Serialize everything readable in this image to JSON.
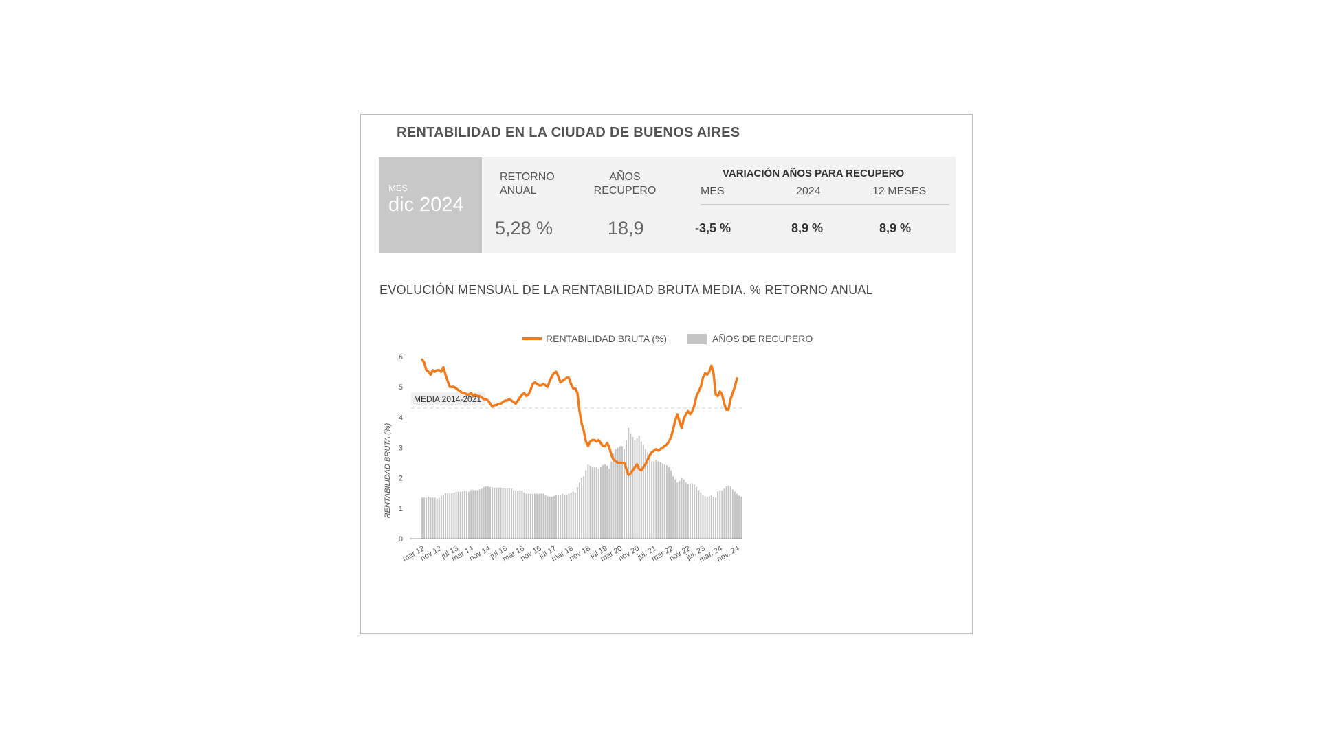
{
  "header": {
    "title": "RENTABILIDAD EN LA CIUDAD DE BUENOS AIRES"
  },
  "kpi": {
    "month_label": "MES",
    "month_value": "dic 2024",
    "retorno_label_1": "RETORNO",
    "retorno_label_2": "ANUAL",
    "retorno_value": "5,28 %",
    "anios_label_1": "AÑOS",
    "anios_label_2": "RECUPERO",
    "anios_value": "18,9",
    "variacion_title": "VARIACIÓN AÑOS PARA RECUPERO",
    "var_mes_label": "MES",
    "var_mes_value": "-3,5 %",
    "var_2024_label": "2024",
    "var_2024_value": "8,9 %",
    "var_12m_label": "12 MESES",
    "var_12m_value": "8,9 %"
  },
  "chart_subtitle": "EVOLUCIÓN MENSUAL DE LA RENTABILIDAD BRUTA MEDIA. % RETORNO ANUAL",
  "colors": {
    "line": "#f07b1d",
    "bars": "#c4c4c4",
    "kpi_bg": "#f2f2f2",
    "month_bg": "#c8c8c8"
  },
  "chart_data": {
    "type": "line",
    "xlabel": "",
    "ylabel": "RENTABILIDAD BRUTA (%)",
    "ylim": [
      0,
      6
    ],
    "yticks": [
      "0",
      "1",
      "2",
      "3",
      "4",
      "5",
      "6"
    ],
    "xtick_labels": [
      "mar 12",
      "nov 12",
      "jul 13",
      "mar 14",
      "nov 14",
      "jul 15",
      "mar 16",
      "nov 16",
      "jul 17",
      "mar 18",
      "nov 18",
      "jul 19",
      "mar 20",
      "nov 20",
      "jul. 21",
      "mar 22",
      "nov 22",
      "jul. 23",
      "mar. 24",
      "nov. 24"
    ],
    "legend": [
      "RENTABILIDAD BRUTA (%)",
      "AÑOS DE RECUPERO"
    ],
    "legend_position": "top",
    "reference_line": {
      "label": "MEDIA 2014-2021",
      "value": 4.3
    },
    "series": [
      {
        "name": "RENTABILIDAD BRUTA (%)",
        "values": [
          5.9,
          5.8,
          5.55,
          5.5,
          5.4,
          5.55,
          5.5,
          5.55,
          5.55,
          5.5,
          5.65,
          5.4,
          5.2,
          5.0,
          5.0,
          5.0,
          4.95,
          4.9,
          4.85,
          4.8,
          4.8,
          4.75,
          4.75,
          4.8,
          4.7,
          4.75,
          4.7,
          4.7,
          4.65,
          4.6,
          4.6,
          4.55,
          4.45,
          4.35,
          4.4,
          4.4,
          4.45,
          4.45,
          4.5,
          4.55,
          4.55,
          4.6,
          4.55,
          4.5,
          4.45,
          4.55,
          4.65,
          4.75,
          4.8,
          4.7,
          4.75,
          4.9,
          5.1,
          5.15,
          5.1,
          5.05,
          5.05,
          5.1,
          5.05,
          5.0,
          5.2,
          5.35,
          5.45,
          5.5,
          5.35,
          5.15,
          5.2,
          5.25,
          5.3,
          5.3,
          5.1,
          4.95,
          4.95,
          4.8,
          4.2,
          3.8,
          3.55,
          3.2,
          3.05,
          3.2,
          3.25,
          3.25,
          3.2,
          3.25,
          3.15,
          3.05,
          3.05,
          3.15,
          3.0,
          2.75,
          2.6,
          2.55,
          2.5,
          2.5,
          2.5,
          2.5,
          2.3,
          2.1,
          2.15,
          2.25,
          2.35,
          2.45,
          2.3,
          2.25,
          2.35,
          2.45,
          2.6,
          2.75,
          2.85,
          2.9,
          2.95,
          2.9,
          2.95,
          3.0,
          3.05,
          3.1,
          3.2,
          3.35,
          3.6,
          3.9,
          4.1,
          3.85,
          3.65,
          3.95,
          4.1,
          4.2,
          4.1,
          4.2,
          4.4,
          4.7,
          4.85,
          5.0,
          5.3,
          5.45,
          5.4,
          5.5,
          5.7,
          5.45,
          4.75,
          4.7,
          4.85,
          4.75,
          4.45,
          4.25,
          4.25,
          4.6,
          4.8,
          5.0,
          5.28
        ]
      },
      {
        "name": "AÑOS DE RECUPERO",
        "values": [
          1.35,
          1.35,
          1.35,
          1.38,
          1.35,
          1.35,
          1.35,
          1.32,
          1.35,
          1.42,
          1.45,
          1.5,
          1.5,
          1.5,
          1.5,
          1.52,
          1.55,
          1.55,
          1.55,
          1.55,
          1.57,
          1.57,
          1.55,
          1.6,
          1.6,
          1.6,
          1.6,
          1.62,
          1.65,
          1.7,
          1.72,
          1.72,
          1.7,
          1.7,
          1.68,
          1.68,
          1.68,
          1.68,
          1.66,
          1.65,
          1.66,
          1.66,
          1.65,
          1.6,
          1.58,
          1.58,
          1.6,
          1.58,
          1.52,
          1.48,
          1.48,
          1.48,
          1.48,
          1.48,
          1.48,
          1.48,
          1.48,
          1.48,
          1.45,
          1.4,
          1.38,
          1.38,
          1.4,
          1.45,
          1.45,
          1.45,
          1.48,
          1.45,
          1.45,
          1.48,
          1.52,
          1.55,
          1.52,
          1.7,
          1.85,
          2.0,
          2.05,
          2.25,
          2.45,
          2.4,
          2.35,
          2.35,
          2.35,
          2.3,
          2.35,
          2.42,
          2.45,
          2.4,
          2.3,
          2.55,
          2.8,
          2.95,
          3.0,
          3.05,
          3.05,
          2.95,
          3.25,
          3.65,
          3.45,
          3.35,
          3.25,
          3.3,
          3.4,
          3.2,
          3.1,
          2.95,
          2.85,
          2.65,
          2.55,
          2.55,
          2.6,
          2.55,
          2.52,
          2.48,
          2.45,
          2.42,
          2.35,
          2.25,
          2.05,
          1.95,
          1.85,
          1.9,
          2.0,
          1.95,
          1.85,
          1.8,
          1.82,
          1.82,
          1.78,
          1.7,
          1.6,
          1.52,
          1.45,
          1.4,
          1.38,
          1.4,
          1.42,
          1.38,
          1.35,
          1.55,
          1.6,
          1.58,
          1.65,
          1.72,
          1.75,
          1.72,
          1.62,
          1.55,
          1.48,
          1.42,
          1.38
        ]
      }
    ]
  }
}
